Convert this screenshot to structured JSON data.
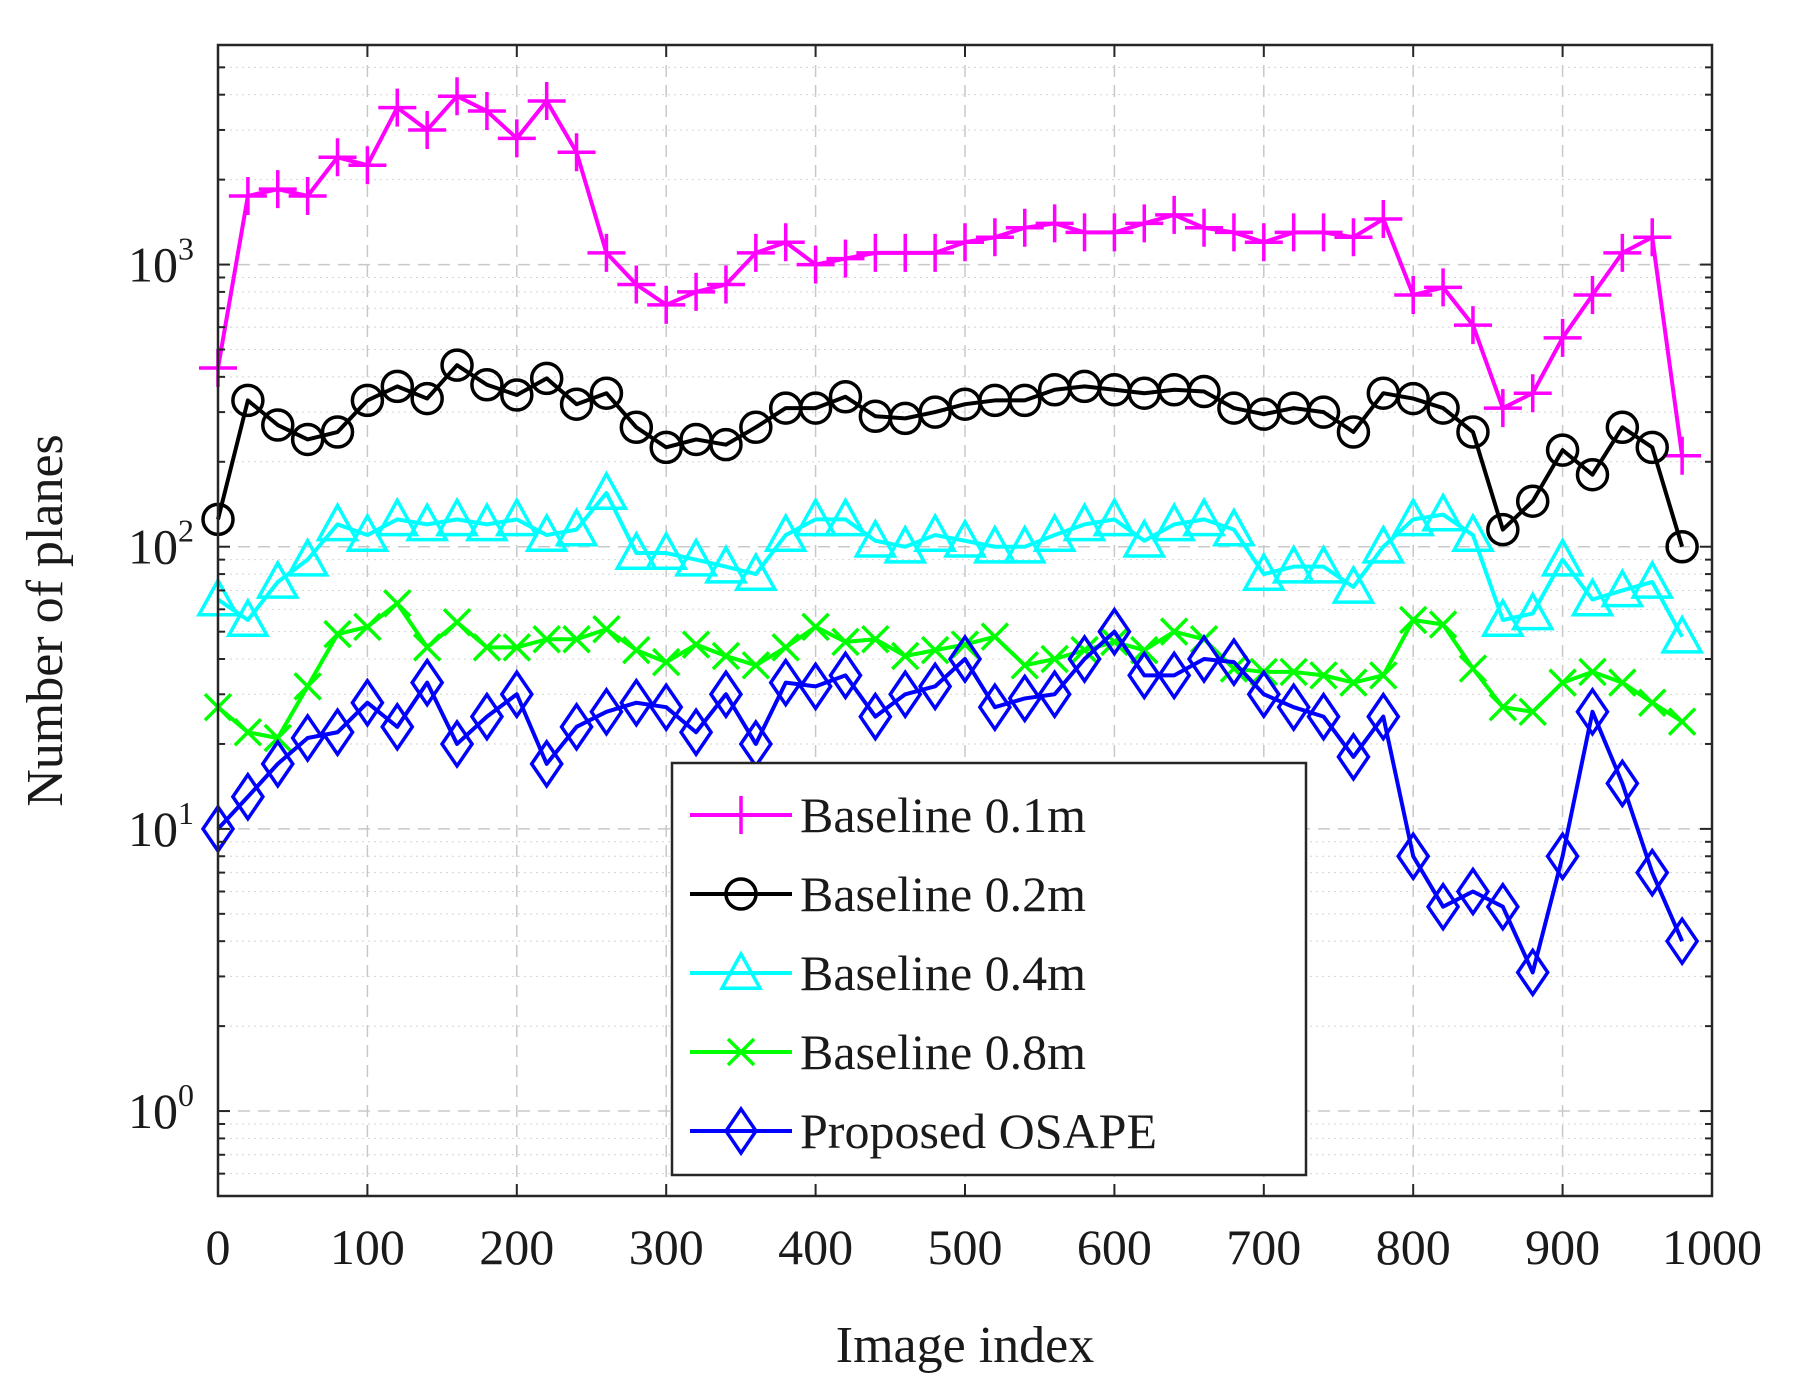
{
  "chart_data": {
    "type": "line",
    "title": "",
    "xlabel": "Image index",
    "ylabel": "Number of planes",
    "xlim": [
      0,
      1000
    ],
    "ylim": [
      0.5,
      6000
    ],
    "yscale": "log",
    "grid": true,
    "legend_position": "bottom-center",
    "x_ticks": [
      "0",
      "100",
      "200",
      "300",
      "400",
      "500",
      "600",
      "700",
      "800",
      "900",
      "1000"
    ],
    "y_ticks": [
      {
        "base": "10",
        "exp": "0"
      },
      {
        "base": "10",
        "exp": "1"
      },
      {
        "base": "10",
        "exp": "2"
      },
      {
        "base": "10",
        "exp": "3"
      }
    ],
    "x": [
      0,
      20,
      40,
      60,
      80,
      100,
      120,
      140,
      160,
      180,
      200,
      220,
      240,
      260,
      280,
      300,
      320,
      340,
      360,
      380,
      400,
      420,
      440,
      460,
      480,
      500,
      520,
      540,
      560,
      580,
      600,
      620,
      640,
      660,
      680,
      700,
      720,
      740,
      760,
      780,
      800,
      820,
      840,
      860,
      880,
      900,
      920,
      940,
      960,
      980
    ],
    "series": [
      {
        "name": "Baseline 0.1m",
        "color": "#ff00ff",
        "marker": "plus",
        "values": [
          430,
          1750,
          1850,
          1750,
          2400,
          2250,
          3600,
          3000,
          3950,
          3500,
          2800,
          3800,
          2500,
          1100,
          850,
          720,
          800,
          850,
          1100,
          1200,
          1000,
          1050,
          1100,
          1100,
          1100,
          1200,
          1250,
          1350,
          1400,
          1300,
          1300,
          1400,
          1500,
          1350,
          1300,
          1200,
          1300,
          1300,
          1250,
          1450,
          780,
          830,
          610,
          310,
          350,
          550,
          780,
          1100,
          1250,
          210
        ]
      },
      {
        "name": "Baseline 0.2m",
        "color": "#000000",
        "marker": "circle",
        "values": [
          125,
          330,
          270,
          240,
          255,
          330,
          370,
          335,
          440,
          375,
          345,
          395,
          320,
          350,
          265,
          225,
          240,
          230,
          265,
          310,
          310,
          340,
          290,
          285,
          300,
          320,
          330,
          330,
          360,
          370,
          360,
          350,
          360,
          355,
          310,
          295,
          310,
          300,
          255,
          350,
          335,
          310,
          255,
          115,
          145,
          220,
          180,
          265,
          225,
          100
        ]
      },
      {
        "name": "Baseline 0.4m",
        "color": "#00ffff",
        "marker": "triangle",
        "values": [
          65,
          55,
          75,
          90,
          120,
          110,
          125,
          120,
          125,
          120,
          125,
          110,
          115,
          155,
          95,
          95,
          90,
          85,
          80,
          110,
          125,
          125,
          105,
          100,
          110,
          105,
          100,
          100,
          110,
          120,
          125,
          105,
          120,
          125,
          115,
          80,
          85,
          85,
          72,
          100,
          125,
          130,
          110,
          55,
          58,
          90,
          65,
          70,
          75,
          48
        ]
      },
      {
        "name": "Baseline 0.8m",
        "color": "#00ff00",
        "marker": "x",
        "values": [
          27,
          22,
          21,
          32,
          49,
          52,
          63,
          44,
          54,
          44,
          44,
          47,
          47,
          51,
          43,
          39,
          45,
          41,
          38,
          44,
          52,
          46,
          47,
          41,
          43,
          45,
          48,
          38,
          40,
          43,
          46,
          43,
          50,
          47,
          37,
          36,
          36,
          35,
          33,
          35,
          55,
          53,
          37,
          27,
          26,
          33,
          36,
          33,
          28,
          24
        ]
      },
      {
        "name": "Proposed OSAPE",
        "color": "#0000ff",
        "marker": "diamond",
        "values": [
          10,
          13,
          17,
          21,
          22,
          28,
          23,
          33,
          20,
          25,
          30,
          17,
          23,
          26,
          28,
          27,
          22,
          30,
          20,
          33,
          32,
          35,
          25,
          30,
          32,
          40,
          27,
          29,
          30,
          40,
          50,
          35,
          35,
          40,
          39,
          30,
          27,
          25,
          18,
          25,
          8,
          5.3,
          6,
          5.3,
          3.1,
          8,
          26,
          14.5,
          7,
          4
        ]
      }
    ]
  }
}
